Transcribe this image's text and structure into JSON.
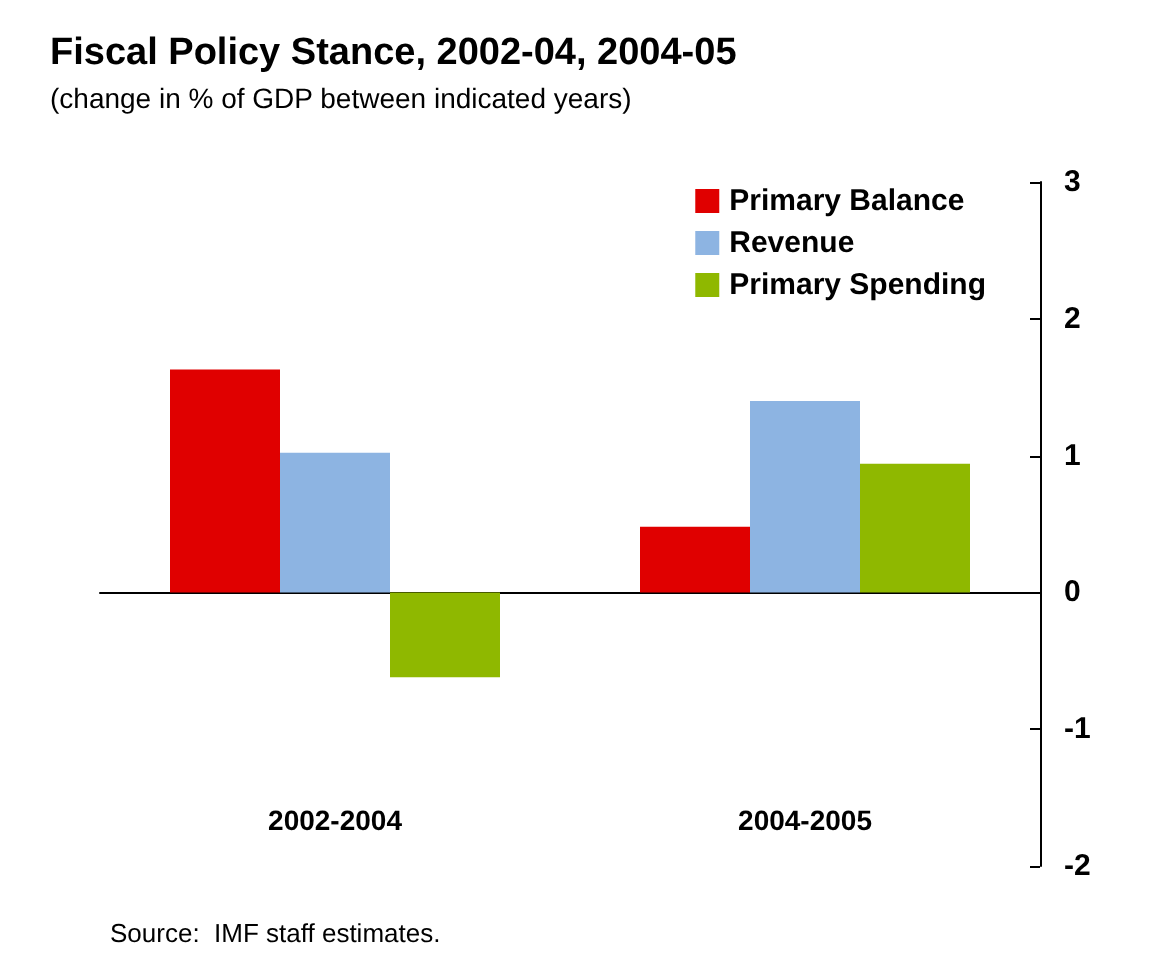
{
  "chart_data": {
    "type": "bar",
    "title": "Fiscal Policy Stance, 2002-04, 2004-05",
    "subtitle": "(change in % of GDP between indicated years)",
    "categories": [
      "2002-2004",
      "2004-2005"
    ],
    "series": [
      {
        "name": "Primary Balance",
        "color": "#e00000",
        "values": [
          1.63,
          0.48
        ]
      },
      {
        "name": "Revenue",
        "color": "#8db4e2",
        "values": [
          1.02,
          1.4
        ]
      },
      {
        "name": "Primary Spending",
        "color": "#8fb800",
        "values": [
          -0.62,
          0.94
        ]
      }
    ],
    "ylim": [
      -2,
      3
    ],
    "yticks": [
      -2,
      -1,
      0,
      1,
      2,
      3
    ],
    "legend": "top right",
    "annotations": [
      "Source:  IMF staff estimates."
    ]
  }
}
